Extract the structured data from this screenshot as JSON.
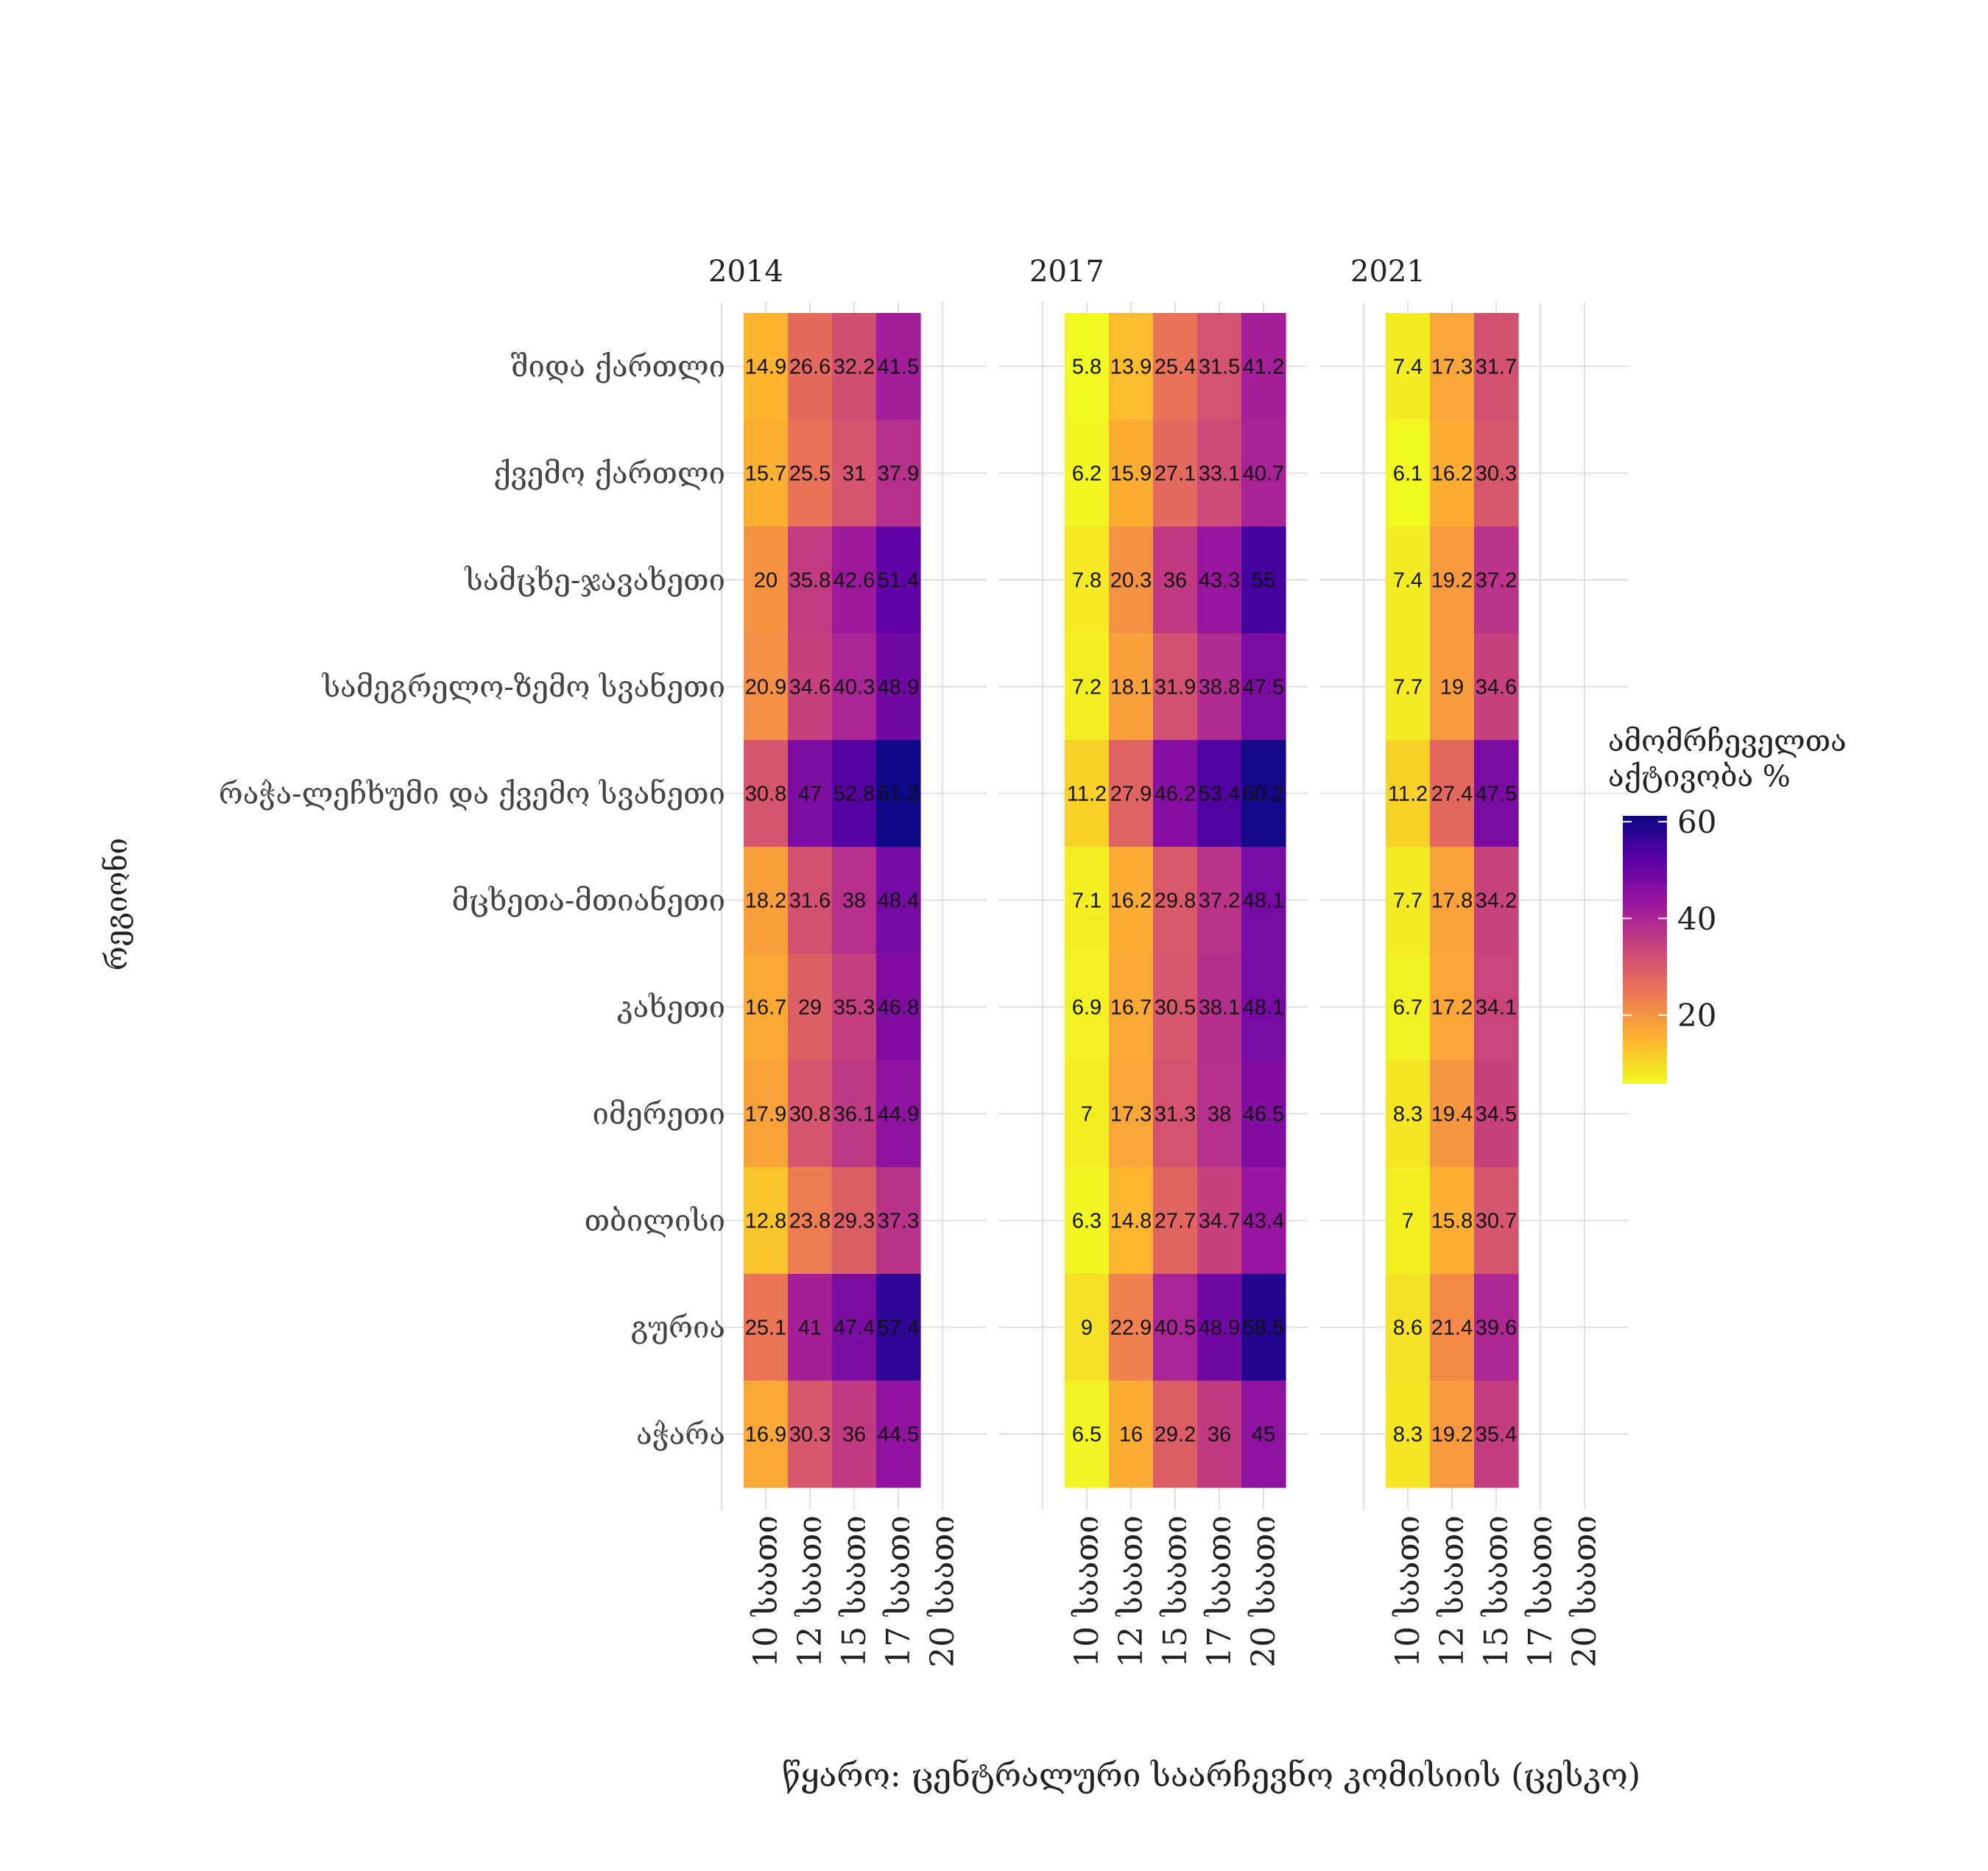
{
  "chart_data": {
    "type": "heatmap",
    "ylabel": "რეგიონი",
    "caption": "წყარო: ცენტრალური საარჩევნო კომისიის (ცესკო)",
    "legend": {
      "title_line1": "ამომრჩეველთა",
      "title_line2": "აქტივობა %",
      "ticks": [
        20,
        40,
        60
      ],
      "range": [
        5.8,
        61.2
      ],
      "placement": "right",
      "palette": [
        "#0d0887",
        "#5c01a6",
        "#9c179e",
        "#cc4778",
        "#ed7953",
        "#fdb42f",
        "#f0f921"
      ]
    },
    "grid": true,
    "x_categories": [
      "10 საათი",
      "12 საათი",
      "15 საათი",
      "17 საათი",
      "20 საათი"
    ],
    "regions": [
      "შიდა ქართლი",
      "ქვემო ქართლი",
      "სამცხე-ჯავახეთი",
      "სამეგრელო-ზემო სვანეთი",
      "რაჭა-ლეჩხუმი და ქვემო სვანეთი",
      "მცხეთა-მთიანეთი",
      "კახეთი",
      "იმერეთი",
      "თბილისი",
      "გურია",
      "აჭარა"
    ],
    "panels": [
      {
        "year": "2014",
        "values": [
          [
            14.9,
            26.6,
            32.2,
            41.5
          ],
          [
            15.7,
            25.5,
            31,
            37.9
          ],
          [
            20,
            35.8,
            42.6,
            51.4
          ],
          [
            20.9,
            34.6,
            40.3,
            48.9
          ],
          [
            30.8,
            47,
            52.8,
            61.2
          ],
          [
            18.2,
            31.6,
            38,
            48.4
          ],
          [
            16.7,
            29,
            35.3,
            46.8
          ],
          [
            17.9,
            30.8,
            36.1,
            44.9
          ],
          [
            12.8,
            23.8,
            29.3,
            37.3
          ],
          [
            25.1,
            41,
            47.4,
            57.4
          ],
          [
            16.9,
            30.3,
            36,
            44.5
          ]
        ],
        "labels": [
          [
            "14.9",
            "26.6",
            "32.2",
            "41.5"
          ],
          [
            "15.7",
            "25.5",
            "31",
            "37.9"
          ],
          [
            "20",
            "35.8",
            "42.6",
            "51.4"
          ],
          [
            "20.9",
            "34.6",
            "40.3",
            "48.9"
          ],
          [
            "30.8",
            "47",
            "52.8",
            "61.2"
          ],
          [
            "18.2",
            "31.6",
            "38",
            "48.4"
          ],
          [
            "16.7",
            "29",
            "35.3",
            "46.8"
          ],
          [
            "17.9",
            "30.8",
            "36.1",
            "44.9"
          ],
          [
            "12.8",
            "23.8",
            "29.3",
            "37.3"
          ],
          [
            "25.1",
            "41",
            "47.4",
            "57.4"
          ],
          [
            "16.9",
            "30.3",
            "36",
            "44.5"
          ]
        ]
      },
      {
        "year": "2017",
        "values": [
          [
            5.8,
            13.9,
            25.4,
            31.5,
            41.2
          ],
          [
            6.2,
            15.9,
            27.1,
            33.1,
            40.7
          ],
          [
            7.8,
            20.3,
            36,
            43.3,
            55
          ],
          [
            7.2,
            18.1,
            31.9,
            38.8,
            47.5
          ],
          [
            11.2,
            27.9,
            46.2,
            53.4,
            60.2
          ],
          [
            7.1,
            16.2,
            29.8,
            37.2,
            48.1
          ],
          [
            6.9,
            16.7,
            30.5,
            38.1,
            48.1
          ],
          [
            7,
            17.3,
            31.3,
            38,
            46.5
          ],
          [
            6.3,
            14.8,
            27.7,
            34.7,
            43.4
          ],
          [
            9,
            22.9,
            40.5,
            48.9,
            58.5
          ],
          [
            6.5,
            16,
            29.2,
            36,
            45
          ]
        ],
        "labels": [
          [
            "5.8",
            "13.9",
            "25.4",
            "31.5",
            "41.2"
          ],
          [
            "6.2",
            "15.9",
            "27.1",
            "33.1",
            "40.7"
          ],
          [
            "7.8",
            "20.3",
            "36",
            "43.3",
            "55"
          ],
          [
            "7.2",
            "18.1",
            "31.9",
            "38.8",
            "47.5"
          ],
          [
            "11.2",
            "27.9",
            "46.2",
            "53.4",
            "60.2"
          ],
          [
            "7.1",
            "16.2",
            "29.8",
            "37.2",
            "48.1"
          ],
          [
            "6.9",
            "16.7",
            "30.5",
            "38.1",
            "48.1"
          ],
          [
            "7",
            "17.3",
            "31.3",
            "38",
            "46.5"
          ],
          [
            "6.3",
            "14.8",
            "27.7",
            "34.7",
            "43.4"
          ],
          [
            "9",
            "22.9",
            "40.5",
            "48.9",
            "58.5"
          ],
          [
            "6.5",
            "16",
            "29.2",
            "36",
            "45"
          ]
        ]
      },
      {
        "year": "2021",
        "values": [
          [
            7.4,
            17.3,
            31.7
          ],
          [
            6.1,
            16.2,
            30.3
          ],
          [
            7.4,
            19.2,
            37.2
          ],
          [
            7.7,
            19,
            34.6
          ],
          [
            11.2,
            27.4,
            47.5
          ],
          [
            7.7,
            17.8,
            34.2
          ],
          [
            6.7,
            17.2,
            34.1
          ],
          [
            8.3,
            19.4,
            34.5
          ],
          [
            7,
            15.8,
            30.7
          ],
          [
            8.6,
            21.4,
            39.6
          ],
          [
            8.3,
            19.2,
            35.4
          ]
        ],
        "labels": [
          [
            "7.4",
            "17.3",
            "31.7"
          ],
          [
            "6.1",
            "16.2",
            "30.3"
          ],
          [
            "7.4",
            "19.2",
            "37.2"
          ],
          [
            "7.7",
            "19",
            "34.6"
          ],
          [
            "11.2",
            "27.4",
            "47.5"
          ],
          [
            "7.7",
            "17.8",
            "34.2"
          ],
          [
            "6.7",
            "17.2",
            "34.1"
          ],
          [
            "8.3",
            "19.4",
            "34.5"
          ],
          [
            "7",
            "15.8",
            "30.7"
          ],
          [
            "8.6",
            "21.4",
            "39.6"
          ],
          [
            "8.3",
            "19.2",
            "35.4"
          ]
        ]
      }
    ]
  }
}
